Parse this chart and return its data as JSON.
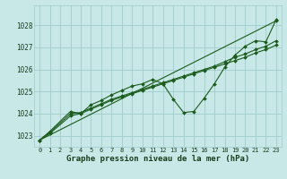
{
  "title": "Graphe pression niveau de la mer (hPa)",
  "bg_color": "#c8e8e8",
  "grid_color": "#a0cccc",
  "line_color": "#1a5c1a",
  "xlim": [
    -0.5,
    23.5
  ],
  "ylim": [
    1022.5,
    1028.9
  ],
  "xticks": [
    0,
    1,
    2,
    3,
    4,
    5,
    6,
    7,
    8,
    9,
    10,
    11,
    12,
    13,
    14,
    15,
    16,
    17,
    18,
    19,
    20,
    21,
    22,
    23
  ],
  "yticks": [
    1023,
    1024,
    1025,
    1026,
    1027,
    1028
  ],
  "series": [
    {
      "x": [
        0,
        1,
        3,
        4,
        5,
        6,
        7,
        8,
        9,
        10,
        11,
        12,
        13,
        14,
        15,
        16,
        17,
        18,
        19,
        20,
        21,
        22,
        23
      ],
      "y": [
        1022.8,
        1023.2,
        1024.1,
        1024.0,
        1024.4,
        1024.6,
        1024.85,
        1025.05,
        1025.25,
        1025.35,
        1025.55,
        1025.35,
        1024.65,
        1024.05,
        1024.1,
        1024.7,
        1025.35,
        1026.1,
        1026.65,
        1027.05,
        1027.3,
        1027.25,
        1028.25
      ]
    },
    {
      "x": [
        0,
        1,
        3,
        4,
        5,
        6,
        7,
        8,
        9,
        10,
        11,
        12,
        13,
        14,
        15,
        16,
        17,
        18,
        19,
        20,
        21,
        22,
        23
      ],
      "y": [
        1022.8,
        1023.1,
        1023.9,
        1024.0,
        1024.2,
        1024.4,
        1024.6,
        1024.75,
        1024.9,
        1025.05,
        1025.2,
        1025.35,
        1025.5,
        1025.65,
        1025.8,
        1025.95,
        1026.1,
        1026.25,
        1026.4,
        1026.55,
        1026.75,
        1026.9,
        1027.1
      ]
    },
    {
      "x": [
        0,
        1,
        3,
        4,
        5,
        6,
        7,
        8,
        9,
        10,
        11,
        12,
        13,
        14,
        15,
        16,
        17,
        18,
        19,
        20,
        21,
        22,
        23
      ],
      "y": [
        1022.8,
        1023.15,
        1024.0,
        1024.05,
        1024.25,
        1024.45,
        1024.65,
        1024.8,
        1024.95,
        1025.1,
        1025.25,
        1025.4,
        1025.55,
        1025.7,
        1025.85,
        1026.0,
        1026.15,
        1026.35,
        1026.55,
        1026.7,
        1026.9,
        1027.05,
        1027.3
      ]
    },
    {
      "x": [
        0,
        23
      ],
      "y": [
        1022.8,
        1028.2
      ]
    }
  ]
}
